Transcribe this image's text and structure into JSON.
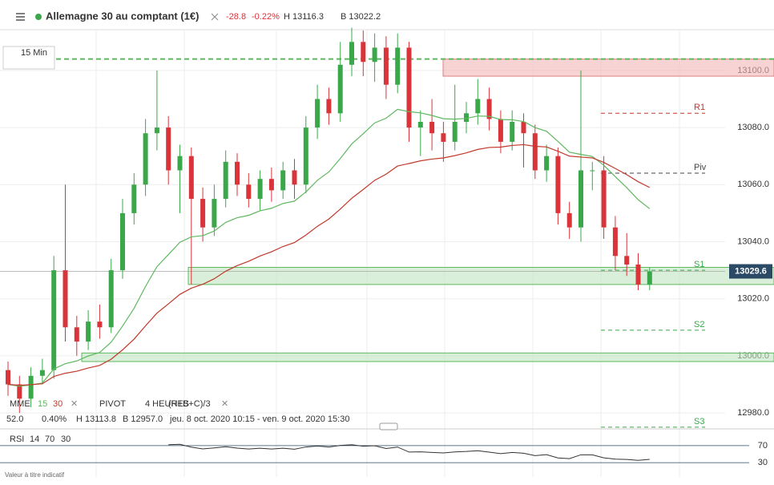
{
  "header": {
    "title": "Allemagne 30 au comptant (1€)",
    "change": "-28.8",
    "change_pct": "-0.22%",
    "high": "H 13116.3",
    "low": "B 13022.2"
  },
  "timeframe": "15 Min",
  "indicator_bar": {
    "mme": "MME",
    "mme_p1": "15",
    "mme_p2": "30",
    "pivot": "PIVOT",
    "pivot_period": "4 HEURES",
    "pivot_formula": "(H+B+C)/3",
    "val": "52.0",
    "pct": "0.40%",
    "h": "H 13113.8",
    "b": "B 12957.0",
    "range": "jeu. 8 oct. 2020 10:15 - ven. 9 oct. 2020 15:30"
  },
  "rsi_bar": {
    "name": "RSI",
    "p": "14",
    "up": "70",
    "down": "30"
  },
  "footer": "Valeur à titre indicatif",
  "chart_data": {
    "type": "candlestick",
    "open": [
      12995,
      12990,
      12985,
      12993,
      12995,
      13030,
      13010,
      13005,
      13012,
      13010,
      13030,
      13050,
      13060,
      13078,
      13080,
      13065,
      13070,
      13055,
      13045,
      13055,
      13068,
      13060,
      13055,
      13062,
      13058,
      13065,
      13060,
      13080,
      13090,
      13085,
      13102,
      13110,
      13103,
      13108,
      13095,
      13108,
      13080,
      13082,
      13078,
      13075,
      13082,
      13085,
      13090,
      13083,
      13075,
      13082,
      13078,
      13065,
      13070,
      13050,
      13045,
      13065,
      13065,
      13045,
      13035,
      13032,
      13025
    ],
    "high": [
      12998,
      12993,
      12996,
      12999,
      13035,
      13060,
      13014,
      13016,
      13018,
      13034,
      13055,
      13064,
      13083,
      13100,
      13084,
      13074,
      13073,
      13059,
      13060,
      13072,
      13071,
      13064,
      13065,
      13066,
      13068,
      13069,
      13084,
      13095,
      13094,
      13110,
      13115,
      13114,
      13113,
      13112,
      13113,
      13110,
      13086,
      13090,
      13082,
      13095,
      13089,
      13097,
      13094,
      13086,
      13086,
      13085,
      13081,
      13074,
      13073,
      13054,
      13100,
      13068,
      13070,
      13049,
      13043,
      13036,
      13031
    ],
    "low": [
      12986,
      12980,
      12982,
      12990,
      12992,
      13005,
      13000,
      13002,
      13006,
      13008,
      13027,
      13046,
      13056,
      13072,
      13060,
      13050,
      13025,
      13040,
      13042,
      13052,
      13056,
      13052,
      13051,
      13054,
      13055,
      13055,
      13057,
      13076,
      13081,
      13082,
      13098,
      13098,
      13096,
      13090,
      13092,
      13075,
      13070,
      13072,
      13068,
      13072,
      13078,
      13081,
      13079,
      13071,
      13072,
      13066,
      13062,
      13061,
      13046,
      13041,
      13040,
      13058,
      13041,
      13030,
      13028,
      13023,
      13023
    ],
    "close": [
      12990,
      12985,
      12993,
      12995,
      13030,
      13010,
      13005,
      13012,
      13010,
      13030,
      13050,
      13060,
      13078,
      13080,
      13065,
      13070,
      13055,
      13045,
      13055,
      13068,
      13060,
      13055,
      13062,
      13058,
      13065,
      13060,
      13080,
      13090,
      13085,
      13102,
      13110,
      13103,
      13108,
      13095,
      13108,
      13080,
      13082,
      13078,
      13075,
      13082,
      13085,
      13090,
      13083,
      13075,
      13082,
      13078,
      13065,
      13070,
      13050,
      13045,
      13065,
      13065,
      13045,
      13035,
      13032,
      13025,
      13029.6
    ],
    "up_color": "#3aa84a",
    "down_color": "#d9343a",
    "ema": [
      {
        "period": 15,
        "color": "#5fb85f"
      },
      {
        "period": 30,
        "color": "#c0392b"
      }
    ],
    "ylim": [
      12973,
      13114.3
    ],
    "yticks": [
      {
        "value": 12980,
        "label": "12980.0"
      },
      {
        "value": 13000,
        "label": "13000.0"
      },
      {
        "value": 13020,
        "label": "13020.0"
      },
      {
        "value": 13040,
        "label": "13040.0"
      },
      {
        "value": 13060,
        "label": "13060.0"
      },
      {
        "value": 13080,
        "label": "13080.0"
      },
      {
        "value": 13100,
        "label": "13100.0"
      }
    ],
    "last": {
      "value": 13029.6,
      "label": "13029.6"
    },
    "levels": [
      {
        "name": "R1",
        "value": 13085,
        "color": "#c0392b"
      },
      {
        "name": "Piv",
        "value": 13064,
        "color": "#444444"
      },
      {
        "name": "S1",
        "value": 13030,
        "color": "#3aa84a"
      },
      {
        "name": "S2",
        "value": 13009,
        "color": "#3aa84a"
      },
      {
        "name": "S3",
        "value": 12975,
        "color": "#3aa84a"
      }
    ],
    "resistance_line": 13104,
    "zones": [
      {
        "low": 13098,
        "high": 13104,
        "color": "#f4b6b6"
      },
      {
        "low": 13025,
        "high": 13031,
        "color": "#bfe4bf"
      },
      {
        "low": 12998,
        "high": 13001,
        "color": "#bfe4bf"
      }
    ],
    "rsi": {
      "period": 14,
      "ylim": [
        0,
        100
      ],
      "yticks": [
        70,
        30
      ]
    }
  }
}
